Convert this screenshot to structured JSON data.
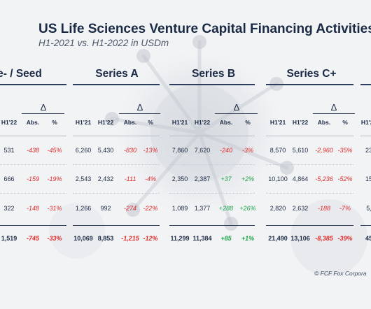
{
  "header": {
    "title": "US Life Sciences Venture Capital Financing Activities",
    "subtitle": "H1-2021 vs. H1-2022 in USDm"
  },
  "segments": [
    {
      "title": "re- / Seed"
    },
    {
      "title": "Series A"
    },
    {
      "title": "Series B"
    },
    {
      "title": "Series C+"
    }
  ],
  "columns": {
    "h1_21": "H1'21",
    "h1_22": "H1'22",
    "abs": "Abs.",
    "pct": "%",
    "delta": "Δ"
  },
  "rows": [
    {
      "seed": {
        "h1_22": "531",
        "abs": "-438",
        "pct": "-45%"
      },
      "a": {
        "h1_21": "6,260",
        "h1_22": "5,430",
        "abs": "-830",
        "pct": "-13%"
      },
      "b": {
        "h1_21": "7,860",
        "h1_22": "7,620",
        "abs": "-240",
        "pct": "-3%"
      },
      "c": {
        "h1_21": "8,570",
        "h1_22": "5,610",
        "abs": "-2,960",
        "pct": "-35%"
      },
      "edge": "23"
    },
    {
      "seed": {
        "h1_22": "666",
        "abs": "-159",
        "pct": "-19%"
      },
      "a": {
        "h1_21": "2,543",
        "h1_22": "2,432",
        "abs": "-111",
        "pct": "-4%"
      },
      "b": {
        "h1_21": "2,350",
        "h1_22": "2,387",
        "abs": "+37",
        "pct": "+2%"
      },
      "c": {
        "h1_21": "10,100",
        "h1_22": "4,864",
        "abs": "-5,236",
        "pct": "-52%"
      },
      "edge": "15"
    },
    {
      "seed": {
        "h1_22": "322",
        "abs": "-148",
        "pct": "-31%"
      },
      "a": {
        "h1_21": "1,266",
        "h1_22": "992",
        "abs": "-274",
        "pct": "-22%"
      },
      "b": {
        "h1_21": "1,089",
        "h1_22": "1,377",
        "abs": "+288",
        "pct": "+26%"
      },
      "c": {
        "h1_21": "2,820",
        "h1_22": "2,632",
        "abs": "-188",
        "pct": "-7%"
      },
      "edge": "5,"
    }
  ],
  "totals": {
    "seed": {
      "h1_22": "1,519",
      "abs": "-745",
      "pct": "-33%"
    },
    "a": {
      "h1_21": "10,069",
      "h1_22": "8,853",
      "abs": "-1,215",
      "pct": "-12%"
    },
    "b": {
      "h1_21": "11,299",
      "h1_22": "11,384",
      "abs": "+85",
      "pct": "+1%"
    },
    "c": {
      "h1_21": "21,490",
      "h1_22": "13,106",
      "abs": "-8,385",
      "pct": "-39%"
    },
    "edge": "45"
  },
  "footer": {
    "copyright": "© FCF Fox Corpora"
  },
  "colors": {
    "navy": "#1b2a44",
    "negative": "#e02b2b",
    "positive": "#1fa34a",
    "background": "#f2f3f5"
  }
}
